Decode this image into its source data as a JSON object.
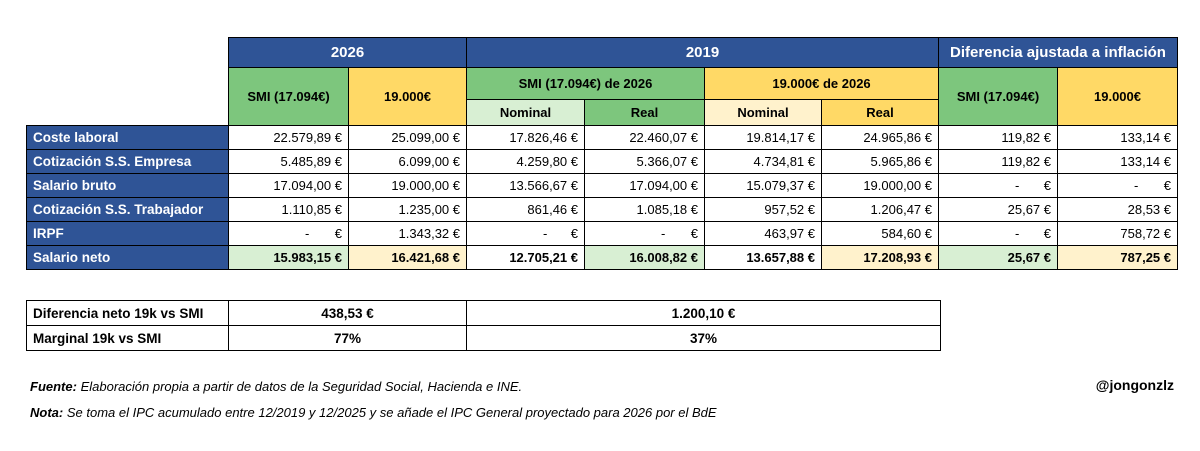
{
  "header": {
    "y2026": "2026",
    "y2019": "2019",
    "diff": "Diferencia ajustada a inflación",
    "smi_2026": "SMI (17.094€)",
    "k19_2026": "19.000€",
    "smi_2019": "SMI (17.094€) de 2026",
    "k19_2019": "19.000€ de 2026",
    "nominal": "Nominal",
    "real": "Real",
    "smi_diff": "SMI (17.094€)",
    "k19_diff": "19.000€"
  },
  "rows": [
    {
      "label": "Coste laboral",
      "c": [
        "22.579,89 €",
        "25.099,00 €",
        "17.826,46 €",
        "22.460,07 €",
        "19.814,17 €",
        "24.965,86 €",
        "119,82 €",
        "133,14 €"
      ]
    },
    {
      "label": "Cotización S.S. Empresa",
      "c": [
        "5.485,89 €",
        "6.099,00 €",
        "4.259,80 €",
        "5.366,07 €",
        "4.734,81 €",
        "5.965,86 €",
        "119,82 €",
        "133,14 €"
      ]
    },
    {
      "label": "Salario bruto",
      "c": [
        "17.094,00 €",
        "19.000,00 €",
        "13.566,67 €",
        "17.094,00 €",
        "15.079,37 €",
        "19.000,00 €",
        "-",
        "-"
      ]
    },
    {
      "label": "Cotización S.S. Trabajador",
      "c": [
        "1.110,85 €",
        "1.235,00 €",
        "861,46 €",
        "1.085,18 €",
        "957,52 €",
        "1.206,47 €",
        "25,67 €",
        "28,53 €"
      ]
    },
    {
      "label": "IRPF",
      "c": [
        "-",
        "1.343,32 €",
        "-",
        "-",
        "463,97 €",
        "584,60 €",
        "-",
        "758,72 €"
      ]
    },
    {
      "label": "Salario neto",
      "c": [
        "15.983,15 €",
        "16.421,68 €",
        "12.705,21 €",
        "16.008,82 €",
        "13.657,88 €",
        "17.208,93 €",
        "25,67 €",
        "787,25 €"
      ]
    }
  ],
  "euro": "€",
  "dash": "-",
  "summary": [
    {
      "label": "Diferencia neto 19k vs SMI",
      "v2026": "438,53 €",
      "v2019": "1.200,10 €"
    },
    {
      "label": "Marginal 19k vs SMI",
      "v2026": "77%",
      "v2019": "37%"
    }
  ],
  "footer": {
    "fuente_label": "Fuente:",
    "fuente_text": "Elaboración propia a partir de datos de la Seguridad Social, Hacienda e INE.",
    "nota_label": "Nota:",
    "nota_text": "Se toma el IPC acumulado entre 12/2019 y 12/2025 y se añade el IPC General proyectado para 2026 por el BdE",
    "handle": "@jongonzlz"
  }
}
